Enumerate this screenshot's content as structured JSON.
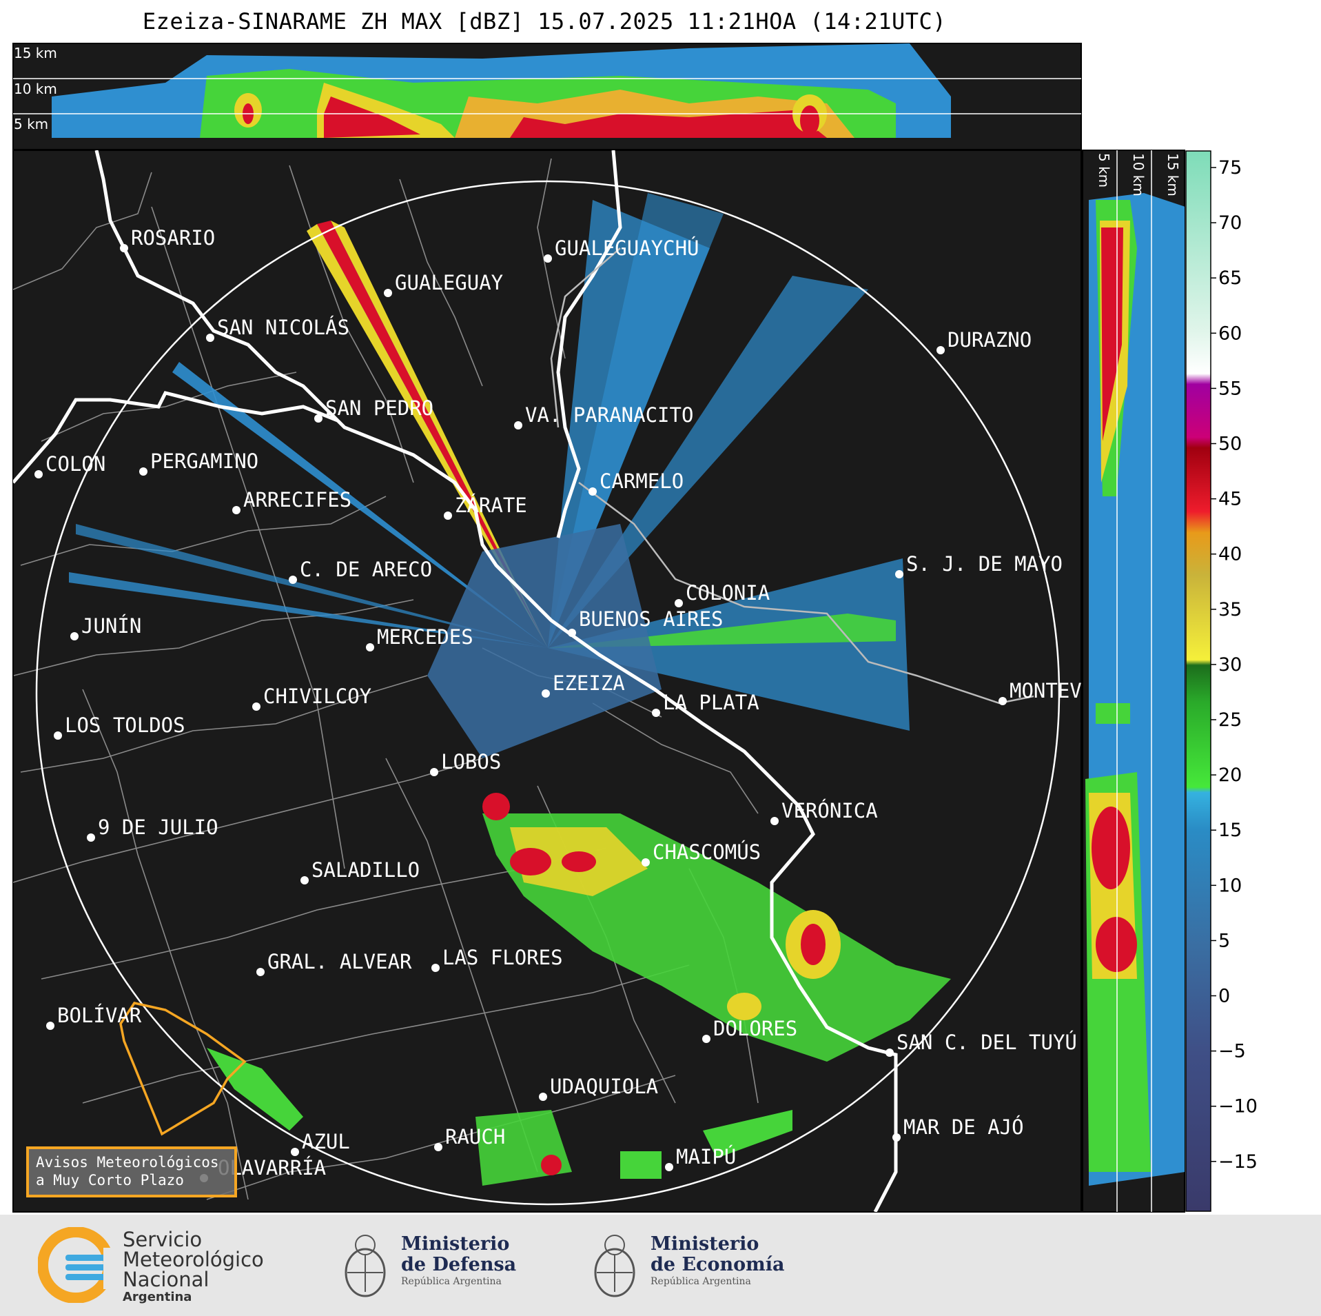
{
  "title": "Ezeiza-SINARAME ZH MAX [dBZ] 15.07.2025 11:21HOA (14:21UTC)",
  "top_panel": {
    "altitude_labels": [
      "15 km",
      "10 km",
      "5 km"
    ]
  },
  "side_panel": {
    "altitude_labels": [
      "5 km",
      "10 km",
      "15 km"
    ]
  },
  "colorbar": {
    "ticks": [
      "75",
      "70",
      "65",
      "60",
      "55",
      "50",
      "45",
      "40",
      "35",
      "30",
      "25",
      "20",
      "15",
      "10",
      "5",
      "0",
      "−5",
      "−10",
      "−15"
    ],
    "unit": "dBZ"
  },
  "cities": [
    {
      "name": "ROSARIO"
    },
    {
      "name": "GUALEGUAYCHÚ"
    },
    {
      "name": "GUALEGUAY"
    },
    {
      "name": "SAN NICOLÁS"
    },
    {
      "name": "DURAZNO"
    },
    {
      "name": "SAN PEDRO"
    },
    {
      "name": "VA. PARANACITO"
    },
    {
      "name": "COLON"
    },
    {
      "name": "PERGAMINO"
    },
    {
      "name": "CARMELO"
    },
    {
      "name": "ARRECIFES"
    },
    {
      "name": "ZÁRATE"
    },
    {
      "name": "S. J. DE MAYO"
    },
    {
      "name": "C. DE ARECO"
    },
    {
      "name": "COLONIA"
    },
    {
      "name": "JUNÍN"
    },
    {
      "name": "BUENOS AIRES"
    },
    {
      "name": "MERCEDES"
    },
    {
      "name": "EZEIZA"
    },
    {
      "name": "MONTEV"
    },
    {
      "name": "CHIVILCOY"
    },
    {
      "name": "LA PLATA"
    },
    {
      "name": "LOS TOLDOS"
    },
    {
      "name": "LOBOS"
    },
    {
      "name": "VERÓNICA"
    },
    {
      "name": "9 DE JULIO"
    },
    {
      "name": "CHASCOMÚS"
    },
    {
      "name": "SALADILLO"
    },
    {
      "name": "GRAL. ALVEAR"
    },
    {
      "name": "LAS FLORES"
    },
    {
      "name": "BOLÍVAR"
    },
    {
      "name": "DOLORES"
    },
    {
      "name": "SAN C. DEL TUYÚ"
    },
    {
      "name": "UDAQUIOLA"
    },
    {
      "name": "MAR DE AJÓ"
    },
    {
      "name": "AZUL"
    },
    {
      "name": "RAUCH"
    },
    {
      "name": "MAIPÚ"
    },
    {
      "name": "OLAVARRÍA"
    }
  ],
  "alert_box": {
    "line1": "Avisos Meteorológicos",
    "line2": "a Muy Corto Plazo"
  },
  "footer": {
    "smn": {
      "line1": "Servicio",
      "line2": "Meteorológico",
      "line3": "Nacional",
      "line4": "Argentina"
    },
    "defensa": {
      "line1": "Ministerio",
      "line2": "de Defensa",
      "line3": "República Argentina"
    },
    "economia": {
      "line1": "Ministerio",
      "line2": "de Economía",
      "line3": "República Argentina"
    }
  },
  "colors": {
    "panel_bg": "#1a1a1a",
    "alert_border": "#f5a623",
    "ring": "#ffffff"
  }
}
